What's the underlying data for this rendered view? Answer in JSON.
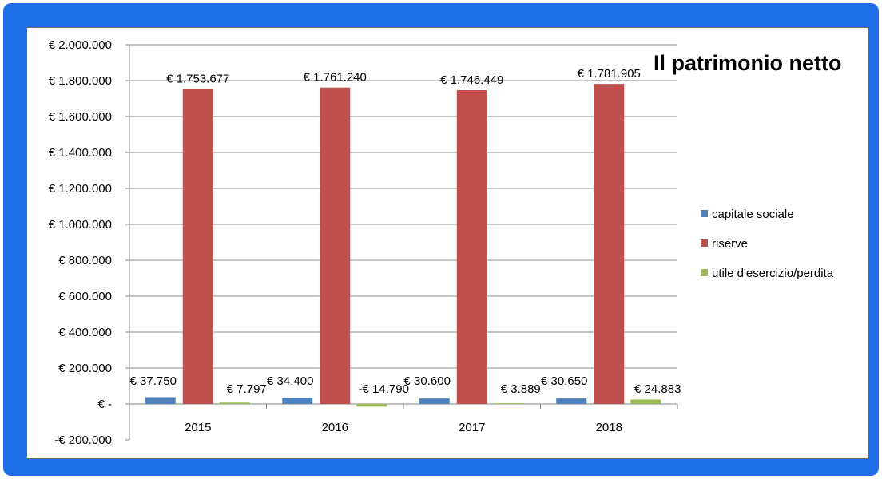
{
  "chart_data": {
    "type": "bar",
    "title": "Il patrimonio netto",
    "categories": [
      "2015",
      "2016",
      "2017",
      "2018"
    ],
    "series": [
      {
        "name": "capitale sociale",
        "color": "#4f81bd",
        "values": [
          37750,
          34400,
          30600,
          30650
        ],
        "labels": [
          "€ 37.750",
          "€ 34.400",
          "€ 30.600",
          "€ 30.650"
        ]
      },
      {
        "name": "riserve",
        "color": "#c0504d",
        "values": [
          1753677,
          1761240,
          1746449,
          1781905
        ],
        "labels": [
          "€ 1.753.677",
          "€ 1.761.240",
          "€ 1.746.449",
          "€ 1.781.905"
        ]
      },
      {
        "name": "utile d'esercizio/perdita",
        "color": "#9bbb59",
        "values": [
          7797,
          -14790,
          3889,
          24883
        ],
        "labels": [
          "€ 7.797",
          "-€ 14.790",
          "€ 3.889",
          "€ 24.883"
        ]
      }
    ],
    "ylim": [
      -200000,
      2000000
    ],
    "yticks": [
      2000000,
      1800000,
      1600000,
      1400000,
      1200000,
      1000000,
      800000,
      600000,
      400000,
      200000,
      0,
      -200000
    ],
    "ytick_labels": [
      "€ 2.000.000",
      "€ 1.800.000",
      "€ 1.600.000",
      "€ 1.400.000",
      "€ 1.200.000",
      "€ 1.000.000",
      "€ 800.000",
      "€ 600.000",
      "€ 400.000",
      "€ 200.000",
      "€ -",
      "-€ 200.000"
    ],
    "grid": true,
    "legend_position": "right",
    "xlabel": "",
    "ylabel": ""
  },
  "colors": {
    "frame": "#1e6ee8",
    "gridline": "#8c8c8c"
  }
}
